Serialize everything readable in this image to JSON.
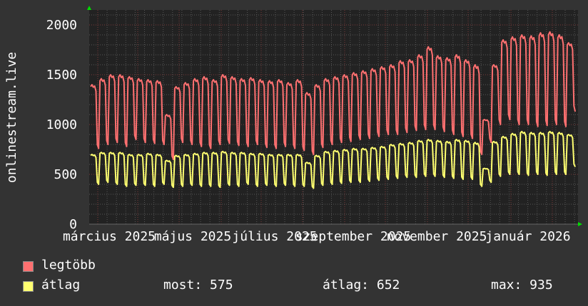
{
  "chart_data": {
    "type": "line",
    "ylabel": "onlinestream.live",
    "ylim": [
      0,
      2150
    ],
    "yticks": [
      "0",
      "500",
      "1000",
      "1500",
      "2000"
    ],
    "xtick_labels": [
      "március 2025",
      "május 2025",
      "július 2025",
      "szeptember 2025",
      "november 2025",
      "január 2026"
    ],
    "grid": true,
    "legend_placement": "bottom-left",
    "series": [
      {
        "name": "legtöbb",
        "color": "#ff7070",
        "weekly_weekday_peak": [
          1400,
          1460,
          1500,
          1500,
          1480,
          1460,
          1450,
          1440,
          1100,
          1380,
          1420,
          1460,
          1480,
          1450,
          1500,
          1480,
          1460,
          1470,
          1450,
          1440,
          1450,
          1420,
          1450,
          1320,
          1400,
          1460,
          1480,
          1500,
          1520,
          1540,
          1560,
          1580,
          1600,
          1640,
          1650,
          1700,
          1780,
          1690,
          1670,
          1700,
          1650,
          1600,
          1050,
          1600,
          1850,
          1880,
          1900,
          1890,
          1920,
          1930,
          1900,
          1820
        ],
        "weekly_weekend_low": [
          760,
          800,
          820,
          780,
          850,
          820,
          810,
          800,
          650,
          820,
          800,
          780,
          760,
          800,
          810,
          790,
          780,
          800,
          770,
          760,
          780,
          760,
          740,
          700,
          770,
          800,
          820,
          830,
          850,
          860,
          880,
          900,
          900,
          920,
          940,
          950,
          950,
          930,
          900,
          880,
          860,
          700,
          820,
          1000,
          1050,
          1000,
          1000,
          980,
          990,
          1000,
          980,
          1130
        ]
      },
      {
        "name": "átlag",
        "color": "#ffff70",
        "weekly_weekday_peak": [
          700,
          720,
          720,
          720,
          700,
          700,
          710,
          700,
          640,
          690,
          700,
          710,
          720,
          720,
          730,
          720,
          720,
          710,
          710,
          700,
          700,
          700,
          700,
          620,
          690,
          730,
          740,
          750,
          760,
          760,
          770,
          780,
          800,
          810,
          820,
          840,
          850,
          840,
          830,
          850,
          840,
          820,
          560,
          830,
          880,
          910,
          930,
          920,
          920,
          930,
          920,
          900
        ],
        "weekly_weekend_low": [
          400,
          420,
          400,
          380,
          390,
          390,
          380,
          400,
          370,
          380,
          390,
          380,
          380,
          370,
          390,
          380,
          400,
          380,
          390,
          380,
          390,
          380,
          380,
          360,
          390,
          400,
          410,
          420,
          420,
          430,
          440,
          450,
          460,
          470,
          470,
          480,
          480,
          470,
          460,
          450,
          450,
          380,
          420,
          480,
          500,
          500,
          490,
          500,
          490,
          500,
          500,
          575
        ]
      }
    ]
  },
  "legend": {
    "items": [
      {
        "label": "legtöbb",
        "color": "#ff7070"
      },
      {
        "label": "átlag",
        "color": "#ffff70"
      }
    ],
    "stats": {
      "most": "most: 575",
      "atlag": "átlag: 652",
      "max": "max: 935"
    }
  }
}
